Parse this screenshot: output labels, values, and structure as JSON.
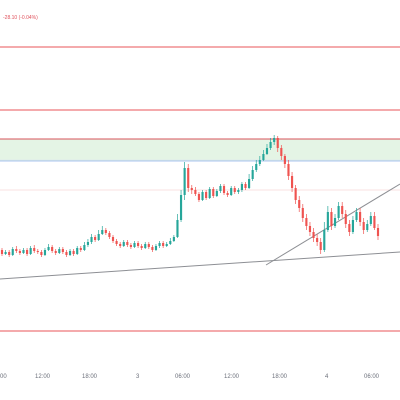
{
  "header": {
    "price_change_text": "-28.10 (-0.04%)"
  },
  "colors": {
    "up": "#26a69a",
    "down": "#ef5350",
    "level_line": "#e8545a",
    "zone_fill": "#e4f4e5",
    "zone_top": "#d9535b",
    "zone_bottom": "#8fb2ea",
    "trendline": "#8d8f94",
    "axis_text": "#6b6f7a"
  },
  "chart_data": {
    "type": "candlestick",
    "x_tick_labels": [
      "00",
      "12:00",
      "18:00",
      "3",
      "06:00",
      "12:00",
      "18:00",
      "4",
      "06:00"
    ],
    "horizontal_levels": [
      "upper-resistance-1",
      "upper-resistance-2",
      "lower-support"
    ],
    "zone": {
      "name": "supply-zone"
    },
    "trendlines": [
      "rising-trendline",
      "long-trendline"
    ],
    "grid": false,
    "candles": [
      [
        150,
        146,
        152,
        144
      ],
      [
        146,
        148,
        150,
        145
      ],
      [
        148,
        145,
        150,
        143
      ],
      [
        145,
        151,
        153,
        144
      ],
      [
        151,
        149,
        154,
        147
      ],
      [
        149,
        147,
        151,
        145
      ],
      [
        147,
        150,
        152,
        146
      ],
      [
        150,
        146,
        152,
        144
      ],
      [
        146,
        152,
        154,
        145
      ],
      [
        152,
        149,
        155,
        147
      ],
      [
        149,
        148,
        151,
        146
      ],
      [
        148,
        145,
        150,
        143
      ],
      [
        145,
        150,
        152,
        144
      ],
      [
        150,
        153,
        156,
        149
      ],
      [
        153,
        149,
        155,
        147
      ],
      [
        149,
        147,
        151,
        145
      ],
      [
        147,
        151,
        153,
        146
      ],
      [
        151,
        148,
        153,
        146
      ],
      [
        148,
        145,
        150,
        143
      ],
      [
        145,
        149,
        151,
        144
      ],
      [
        149,
        146,
        151,
        144
      ],
      [
        146,
        152,
        154,
        145
      ],
      [
        152,
        150,
        154,
        148
      ],
      [
        150,
        155,
        158,
        149
      ],
      [
        155,
        158,
        161,
        153
      ],
      [
        158,
        163,
        166,
        156
      ],
      [
        163,
        160,
        165,
        158
      ],
      [
        160,
        166,
        170,
        159
      ],
      [
        166,
        170,
        174,
        165
      ],
      [
        170,
        167,
        172,
        165
      ],
      [
        167,
        163,
        169,
        161
      ],
      [
        163,
        159,
        165,
        157
      ],
      [
        159,
        156,
        161,
        154
      ],
      [
        156,
        154,
        158,
        152
      ],
      [
        154,
        158,
        160,
        153
      ],
      [
        158,
        155,
        160,
        153
      ],
      [
        155,
        153,
        157,
        151
      ],
      [
        153,
        157,
        159,
        152
      ],
      [
        157,
        154,
        159,
        152
      ],
      [
        154,
        152,
        156,
        150
      ],
      [
        152,
        156,
        158,
        151
      ],
      [
        156,
        153,
        158,
        151
      ],
      [
        153,
        150,
        155,
        148
      ],
      [
        150,
        154,
        156,
        149
      ],
      [
        154,
        157,
        159,
        152
      ],
      [
        157,
        154,
        159,
        152
      ],
      [
        154,
        156,
        158,
        153
      ],
      [
        156,
        159,
        162,
        155
      ],
      [
        159,
        163,
        165,
        158
      ],
      [
        163,
        180,
        186,
        162
      ],
      [
        180,
        205,
        210,
        178
      ],
      [
        205,
        232,
        238,
        200
      ],
      [
        232,
        212,
        236,
        208
      ],
      [
        212,
        210,
        215,
        206
      ],
      [
        210,
        206,
        213,
        204
      ],
      [
        206,
        200,
        208,
        198
      ],
      [
        200,
        208,
        210,
        199
      ],
      [
        208,
        202,
        210,
        200
      ],
      [
        202,
        211,
        213,
        201
      ],
      [
        211,
        204,
        213,
        202
      ],
      [
        204,
        209,
        211,
        203
      ],
      [
        209,
        214,
        216,
        207
      ],
      [
        214,
        207,
        216,
        205
      ],
      [
        207,
        205,
        209,
        203
      ],
      [
        205,
        212,
        214,
        204
      ],
      [
        212,
        208,
        214,
        206
      ],
      [
        208,
        210,
        212,
        206
      ],
      [
        210,
        216,
        218,
        208
      ],
      [
        216,
        212,
        218,
        210
      ],
      [
        212,
        221,
        226,
        211
      ],
      [
        221,
        230,
        234,
        219
      ],
      [
        230,
        236,
        240,
        228
      ],
      [
        236,
        240,
        244,
        234
      ],
      [
        240,
        246,
        250,
        239
      ],
      [
        246,
        252,
        256,
        245
      ],
      [
        252,
        258,
        262,
        250
      ],
      [
        258,
        262,
        265,
        255
      ],
      [
        262,
        252,
        264,
        248
      ],
      [
        252,
        244,
        255,
        240
      ],
      [
        244,
        236,
        246,
        232
      ],
      [
        236,
        224,
        240,
        220
      ],
      [
        224,
        212,
        228,
        208
      ],
      [
        212,
        200,
        215,
        196
      ],
      [
        200,
        192,
        204,
        188
      ],
      [
        192,
        182,
        196,
        178
      ],
      [
        182,
        174,
        186,
        170
      ],
      [
        174,
        168,
        178,
        164
      ],
      [
        168,
        162,
        172,
        158
      ],
      [
        162,
        158,
        166,
        154
      ],
      [
        158,
        150,
        162,
        146
      ],
      [
        150,
        170,
        178,
        148
      ],
      [
        170,
        188,
        194,
        168
      ],
      [
        188,
        174,
        192,
        170
      ],
      [
        174,
        182,
        186,
        172
      ],
      [
        182,
        194,
        198,
        180
      ],
      [
        194,
        186,
        198,
        182
      ],
      [
        186,
        176,
        190,
        172
      ],
      [
        176,
        168,
        180,
        164
      ],
      [
        168,
        180,
        184,
        166
      ],
      [
        180,
        188,
        192,
        178
      ],
      [
        188,
        178,
        192,
        174
      ],
      [
        178,
        170,
        182,
        166
      ],
      [
        170,
        176,
        180,
        168
      ],
      [
        176,
        184,
        188,
        174
      ],
      [
        184,
        172,
        188,
        170
      ],
      [
        172,
        164,
        176,
        160
      ]
    ]
  }
}
